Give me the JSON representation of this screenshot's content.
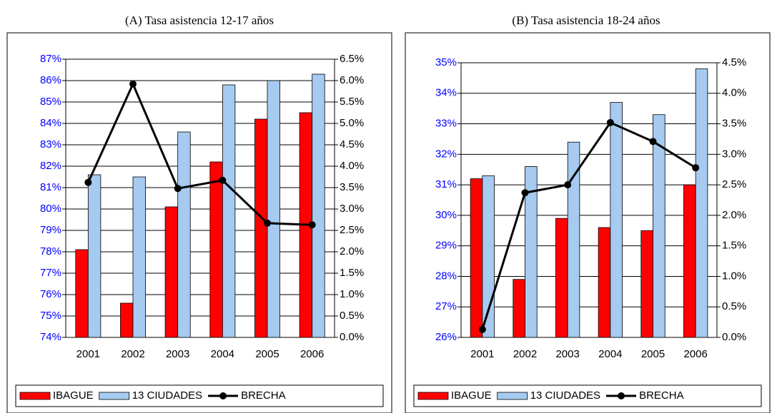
{
  "chart_data": [
    {
      "type": "bar",
      "title": "(A) Tasa asistencia 12-17 años",
      "categories": [
        "2001",
        "2002",
        "2003",
        "2004",
        "2005",
        "2006"
      ],
      "series": [
        {
          "name": "IBAGUE",
          "color": "#ff0000",
          "values": [
            78.1,
            75.6,
            80.1,
            82.2,
            84.2,
            84.5
          ]
        },
        {
          "name": "13 CIUDADES",
          "color": "#a6caf0",
          "values": [
            81.6,
            81.5,
            83.6,
            85.8,
            86.0,
            86.3
          ]
        },
        {
          "name": "BRECHA",
          "color": "#000000",
          "type": "line",
          "axis": "y2",
          "values": [
            3.62,
            5.92,
            3.48,
            3.67,
            2.67,
            2.63
          ]
        }
      ],
      "ylim": [
        74,
        87
      ],
      "yticks": [
        {
          "value": 74,
          "label": "74%"
        },
        {
          "value": 75,
          "label": "75%"
        },
        {
          "value": 76,
          "label": "76%"
        },
        {
          "value": 77,
          "label": "77%"
        },
        {
          "value": 78,
          "label": "78%"
        },
        {
          "value": 79,
          "label": "79%"
        },
        {
          "value": 80,
          "label": "80%"
        },
        {
          "value": 81,
          "label": "81%"
        },
        {
          "value": 82,
          "label": "82%"
        },
        {
          "value": 83,
          "label": "83%"
        },
        {
          "value": 84,
          "label": "84%"
        },
        {
          "value": 85,
          "label": "85%"
        },
        {
          "value": 86,
          "label": "86%"
        },
        {
          "value": 87,
          "label": "87%"
        }
      ],
      "y2lim": [
        0,
        6.5
      ],
      "y2ticks": [
        {
          "value": 0,
          "label": "0.0%"
        },
        {
          "value": 0.5,
          "label": "0.5%"
        },
        {
          "value": 1,
          "label": "1.0%"
        },
        {
          "value": 1.5,
          "label": "1.5%"
        },
        {
          "value": 2,
          "label": "2.0%"
        },
        {
          "value": 2.5,
          "label": "2.5%"
        },
        {
          "value": 3,
          "label": "3.0%"
        },
        {
          "value": 3.5,
          "label": "3.5%"
        },
        {
          "value": 4,
          "label": "4.0%"
        },
        {
          "value": 4.5,
          "label": "4.5%"
        },
        {
          "value": 5,
          "label": "5.0%"
        },
        {
          "value": 5.5,
          "label": "5.5%"
        },
        {
          "value": 6,
          "label": "6.0%"
        },
        {
          "value": 6.5,
          "label": "6.5%"
        }
      ],
      "grid": true,
      "legend": "bottom"
    },
    {
      "type": "bar",
      "title": "(B) Tasa asistencia 18-24 años",
      "categories": [
        "2001",
        "2002",
        "2003",
        "2004",
        "2005",
        "2006"
      ],
      "series": [
        {
          "name": "IBAGUE",
          "color": "#ff0000",
          "values": [
            31.2,
            27.9,
            29.9,
            29.6,
            29.5,
            31.0
          ]
        },
        {
          "name": "13 CIUDADES",
          "color": "#a6caf0",
          "values": [
            31.3,
            31.6,
            32.4,
            33.7,
            33.3,
            34.8
          ]
        },
        {
          "name": "BRECHA",
          "color": "#000000",
          "type": "line",
          "axis": "y2",
          "values": [
            0.13,
            2.37,
            2.5,
            3.52,
            3.21,
            2.78
          ]
        }
      ],
      "ylim": [
        26,
        35
      ],
      "yticks": [
        {
          "value": 26,
          "label": "26%"
        },
        {
          "value": 27,
          "label": "27%"
        },
        {
          "value": 28,
          "label": "28%"
        },
        {
          "value": 29,
          "label": "29%"
        },
        {
          "value": 30,
          "label": "30%"
        },
        {
          "value": 31,
          "label": "31%"
        },
        {
          "value": 32,
          "label": "32%"
        },
        {
          "value": 33,
          "label": "33%"
        },
        {
          "value": 34,
          "label": "34%"
        },
        {
          "value": 35,
          "label": "35%"
        }
      ],
      "y2lim": [
        0,
        4.5
      ],
      "y2ticks": [
        {
          "value": 0,
          "label": "0.0%"
        },
        {
          "value": 0.5,
          "label": "0.5%"
        },
        {
          "value": 1,
          "label": "1.0%"
        },
        {
          "value": 1.5,
          "label": "1.5%"
        },
        {
          "value": 2,
          "label": "2.0%"
        },
        {
          "value": 2.5,
          "label": "2.5%"
        },
        {
          "value": 3,
          "label": "3.0%"
        },
        {
          "value": 3.5,
          "label": "3.5%"
        },
        {
          "value": 4,
          "label": "4.0%"
        },
        {
          "value": 4.5,
          "label": "4.5%"
        }
      ],
      "grid": true,
      "legend": "bottom"
    }
  ]
}
